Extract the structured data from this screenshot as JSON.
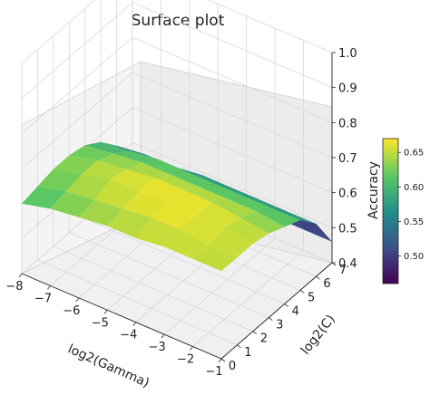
{
  "chart_data": {
    "type": "surface",
    "title": "Surface plot",
    "xlabel": "log2(Gamma)",
    "ylabel": "log2(C)",
    "zlabel": "Accuracy",
    "x": [
      -8,
      -7,
      -6,
      -5,
      -4,
      -3,
      -2,
      -1
    ],
    "y": [
      0,
      1,
      2,
      3,
      4,
      5,
      6,
      7
    ],
    "xlim": [
      -8,
      -1
    ],
    "ylim": [
      0,
      7
    ],
    "zlim": [
      0.4,
      1.0
    ],
    "x_ticks": [
      "−8",
      "−7",
      "−6",
      "−5",
      "−4",
      "−3",
      "−2",
      "−1"
    ],
    "y_ticks": [
      "0",
      "1",
      "2",
      "3",
      "4",
      "5",
      "6",
      "7"
    ],
    "z_ticks": [
      "0.4",
      "0.5",
      "0.6",
      "0.7",
      "0.8",
      "0.9",
      "1.0"
    ],
    "z": [
      [
        0.6,
        0.62,
        0.63,
        0.64,
        0.64,
        0.65,
        0.65,
        0.65
      ],
      [
        0.61,
        0.63,
        0.64,
        0.65,
        0.66,
        0.66,
        0.65,
        0.65
      ],
      [
        0.62,
        0.64,
        0.66,
        0.66,
        0.67,
        0.66,
        0.66,
        0.65
      ],
      [
        0.62,
        0.64,
        0.65,
        0.66,
        0.66,
        0.66,
        0.65,
        0.64
      ],
      [
        0.61,
        0.62,
        0.63,
        0.63,
        0.63,
        0.63,
        0.63,
        0.62
      ],
      [
        0.58,
        0.59,
        0.6,
        0.6,
        0.6,
        0.6,
        0.6,
        0.6
      ],
      [
        0.53,
        0.54,
        0.54,
        0.55,
        0.55,
        0.55,
        0.55,
        0.55
      ],
      [
        0.46,
        0.46,
        0.46,
        0.46,
        0.46,
        0.46,
        0.46,
        0.46
      ]
    ],
    "colormap": "viridis",
    "colorbar": {
      "min": 0.46,
      "max": 0.67,
      "ticks": [
        "0.50",
        "0.55",
        "0.60",
        "0.65"
      ],
      "tick_values": [
        0.5,
        0.55,
        0.6,
        0.65
      ]
    },
    "grid": true
  }
}
